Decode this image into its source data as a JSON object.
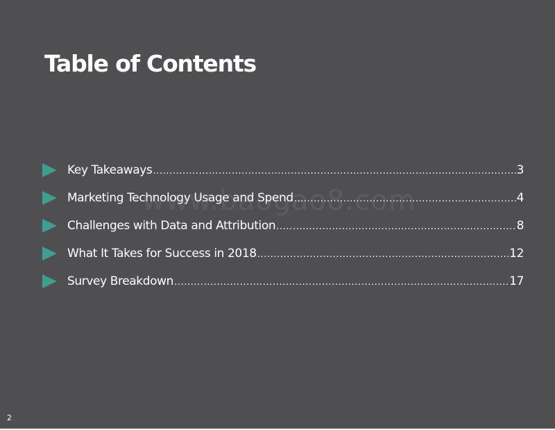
{
  "slide": {
    "title": "Table of Contents",
    "watermark": "www.baogao8.com",
    "page_number": "2",
    "toc": [
      {
        "label": "Key Takeaways ",
        "page": "3"
      },
      {
        "label": "Marketing Technology Usage and Spend",
        "page": "4"
      },
      {
        "label": "Challenges with Data and Attribution",
        "page": "8"
      },
      {
        "label": "What It Takes for Success in 2018",
        "page": "12"
      },
      {
        "label": "Survey Breakdown  ",
        "page": "17"
      }
    ],
    "colors": {
      "background": "#4f4f51",
      "arrow": "#3aa08f",
      "text": "#ffffff"
    }
  }
}
